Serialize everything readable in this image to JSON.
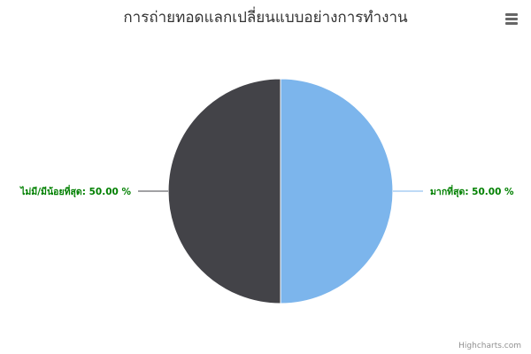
{
  "title": "การถ่ายทอดแลกเปลี่ยนแบบอย่างการทำงาน",
  "menu_icon": "hamburger-menu-icon",
  "credits": "Highcharts.com",
  "chart_data": {
    "type": "pie",
    "title": "การถ่ายทอดแลกเปลี่ยนแบบอย่างการทำงาน",
    "slices": [
      {
        "name": "มากที่สุด",
        "value": 50.0,
        "color": "#7cb5ec",
        "label": "มากที่สุด: 50.00 %"
      },
      {
        "name": "ไม่มี/มีน้อยที่สุด",
        "value": 50.0,
        "color": "#434348",
        "label": "ไม่มี/มีน้อยที่สุด: 50.00 %"
      }
    ],
    "data_label_color": "#008000",
    "connector_colors": [
      "#7cb5ec",
      "#434348"
    ]
  }
}
